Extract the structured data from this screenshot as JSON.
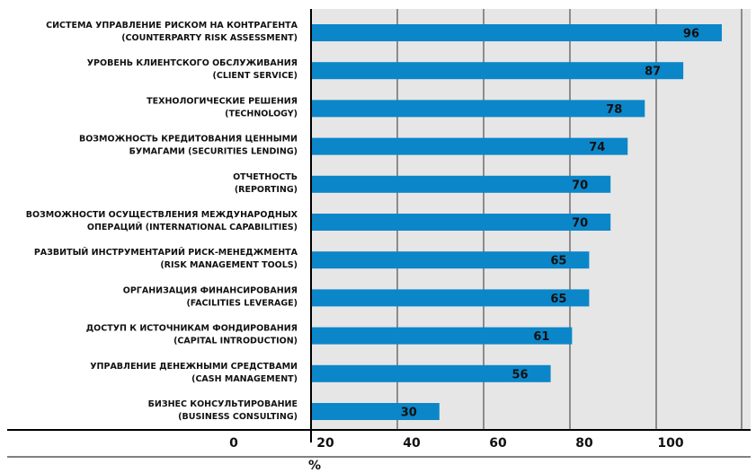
{
  "chart_data": {
    "type": "bar",
    "orientation": "horizontal",
    "categories": [
      [
        "СИСТЕМА УПРАВЛЕНИЕ РИСКОМ НА КОНТРАГЕНТА",
        "(COUNTERPARTY RISK ASSESSMENT)"
      ],
      [
        "УРОВЕНЬ КЛИЕНТСКОГО ОБСЛУЖИВАНИЯ",
        "(CLIENT SERVICE)"
      ],
      [
        "ТЕХНОЛОГИЧЕСКИЕ РЕШЕНИЯ",
        "(TECHNOLOGY)"
      ],
      [
        "ВОЗМОЖНОСТЬ КРЕДИТОВАНИЯ ЦЕННЫМИ",
        "БУМАГАМИ (SECURITIES LENDING)"
      ],
      [
        "ОТЧЕТНОСТЬ",
        "(REPORTING)"
      ],
      [
        "ВОЗМОЖНОСТИ ОСУЩЕСТВЛЕНИЯ МЕЖДУНАРОДНЫХ",
        "ОПЕРАЦИЙ (INTERNATIONAL CAPABILITIES)"
      ],
      [
        "РАЗВИТЫЙ ИНСТРУМЕНТАРИЙ РИСК-МЕНЕДЖМЕНТА",
        "(RISK MANAGEMENT TOOLS)"
      ],
      [
        "ОРГАНИЗАЦИЯ ФИНАНСИРОВАНИЯ",
        "(FACILITIES LEVERAGE)"
      ],
      [
        "ДОСТУП К ИСТОЧНИКАМ ФОНДИРОВАНИЯ",
        "(CAPITAL INTRODUCTION)"
      ],
      [
        "УПРАВЛЕНИЕ ДЕНЕЖНЫМИ СРЕДСТВАМИ",
        "(CASH MANAGEMENT)"
      ],
      [
        "БИЗНЕС КОНСУЛЬТИРОВАНИЕ",
        "(BUSINESS CONSULTING)"
      ]
    ],
    "values": [
      96,
      87,
      78,
      74,
      70,
      70,
      65,
      65,
      61,
      56,
      30
    ],
    "x_ticks": [
      "0",
      "20",
      "40",
      "60",
      "80",
      "100"
    ],
    "xlabel": "%",
    "ylabel": "",
    "title": "",
    "grid": true,
    "colors": {
      "bar": "#0b86c9",
      "plot_background": "#e6e6e6",
      "grid": "#333333",
      "axis": "#000000",
      "text": "#111111"
    }
  }
}
